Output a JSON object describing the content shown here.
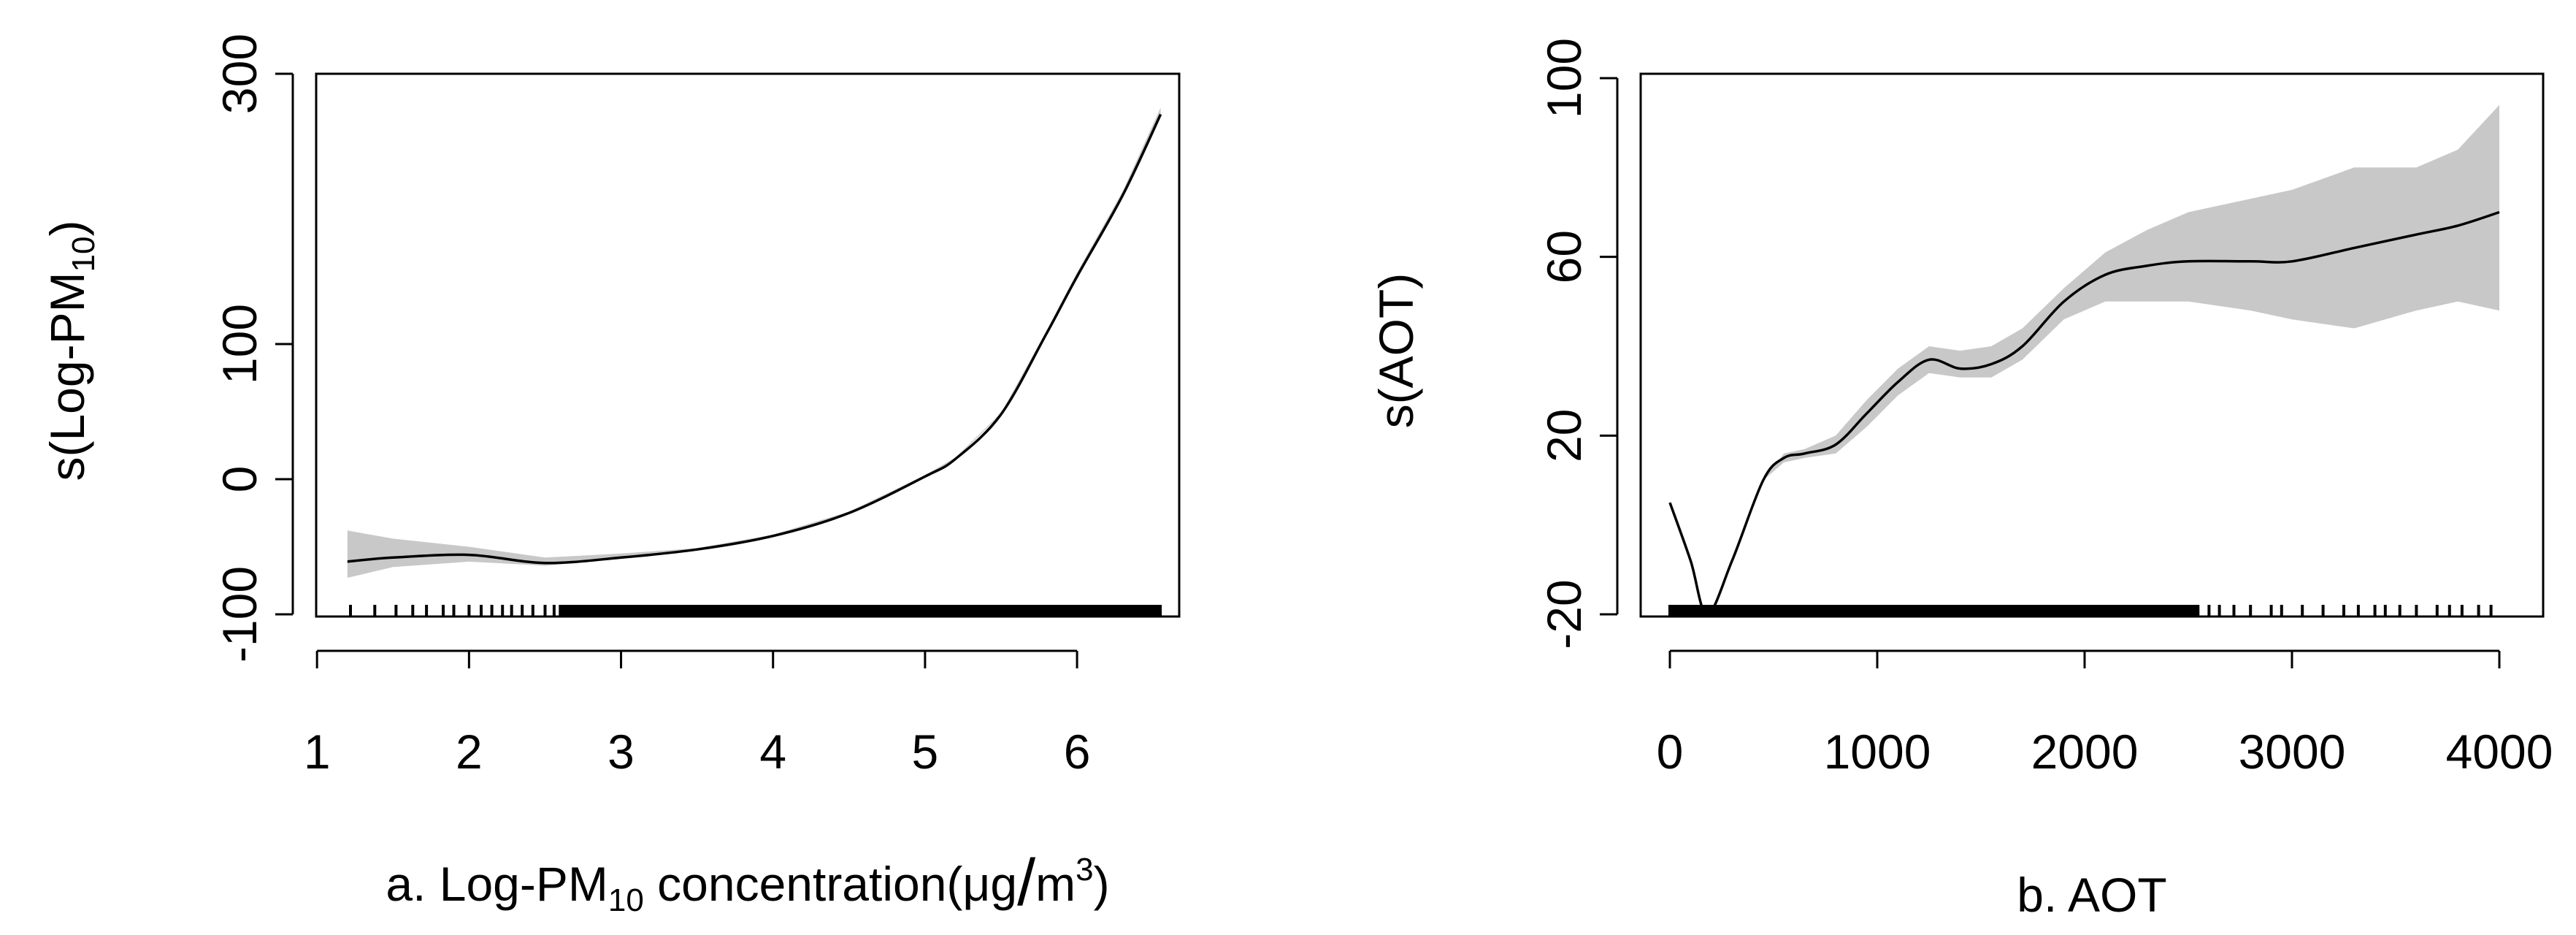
{
  "chart_data": [
    {
      "type": "line",
      "panel": "a",
      "xlabel_parts": [
        "a. Log-PM",
        "10",
        " concentration(μg",
        "/",
        "m",
        "3",
        ")"
      ],
      "ylabel_parts": [
        "s(Log-PM",
        "10",
        ")"
      ],
      "xlim": [
        1.1,
        6.6
      ],
      "ylim": [
        -100,
        300
      ],
      "x_ticks": [
        1,
        2,
        3,
        4,
        5,
        6
      ],
      "y_ticks": [
        -100,
        0,
        100,
        300
      ],
      "y_tick_labels": [
        "-100",
        "0",
        "100",
        "300"
      ],
      "x_tick_labels": [
        "1",
        "2",
        "3",
        "4",
        "5",
        "6"
      ],
      "series": [
        {
          "x": [
            1.2,
            1.5,
            2.0,
            2.5,
            3.0,
            3.5,
            4.0,
            4.5,
            5.0,
            5.2,
            5.5,
            5.8,
            6.0,
            6.3,
            6.55
          ],
          "y": [
            -61,
            -58,
            -56,
            -62,
            -58,
            -52,
            -42,
            -25,
            2,
            15,
            48,
            108,
            150,
            210,
            270
          ],
          "ci_lower": [
            -73,
            -65,
            -61,
            -64,
            -59,
            -52,
            -42,
            -25,
            2,
            15,
            48,
            108,
            150,
            210,
            270
          ],
          "ci_upper": [
            -38,
            -44,
            -50,
            -58,
            -55,
            -51,
            -41,
            -24,
            3,
            16,
            49,
            110,
            153,
            213,
            275
          ]
        }
      ],
      "rug": "dense ticks along x from 1.1 to 6.5, sparse below 2.6"
    },
    {
      "type": "line",
      "panel": "b",
      "xlabel": "b. AOT",
      "ylabel": "s(AOT)",
      "xlim": [
        0,
        4000
      ],
      "ylim": [
        -20,
        100
      ],
      "x_ticks": [
        0,
        1000,
        2000,
        3000,
        4000
      ],
      "x_tick_labels": [
        "0",
        "1000",
        "2000",
        "3000",
        "4000"
      ],
      "y_ticks": [
        -20,
        20,
        60,
        100
      ],
      "y_tick_labels": [
        "-20",
        "20",
        "60",
        "100"
      ],
      "series": [
        {
          "x": [
            0,
            100,
            180,
            300,
            450,
            550,
            650,
            800,
            950,
            1100,
            1250,
            1400,
            1550,
            1700,
            1900,
            2100,
            2300,
            2500,
            2800,
            3000,
            3300,
            3600,
            3800,
            4000
          ],
          "y": [
            5,
            -8,
            -20,
            -8,
            10,
            15,
            16,
            18,
            25,
            32,
            37,
            35,
            36,
            40,
            50,
            56,
            58,
            59,
            59,
            59,
            62,
            65,
            67,
            70
          ],
          "ci_lower": [
            5,
            -8,
            -20,
            -8,
            10,
            14,
            15,
            16,
            22,
            29,
            34,
            33,
            33,
            37,
            46,
            50,
            50,
            50,
            48,
            46,
            44,
            48,
            50,
            48
          ],
          "ci_upper": [
            5,
            -8,
            -20,
            -8,
            10,
            16,
            17,
            20,
            28,
            35,
            40,
            39,
            40,
            44,
            53,
            61,
            66,
            70,
            73,
            75,
            80,
            80,
            84,
            94
          ]
        }
      ],
      "rug": "dense ticks along x from 0 to 2550, sparse beyond"
    }
  ]
}
